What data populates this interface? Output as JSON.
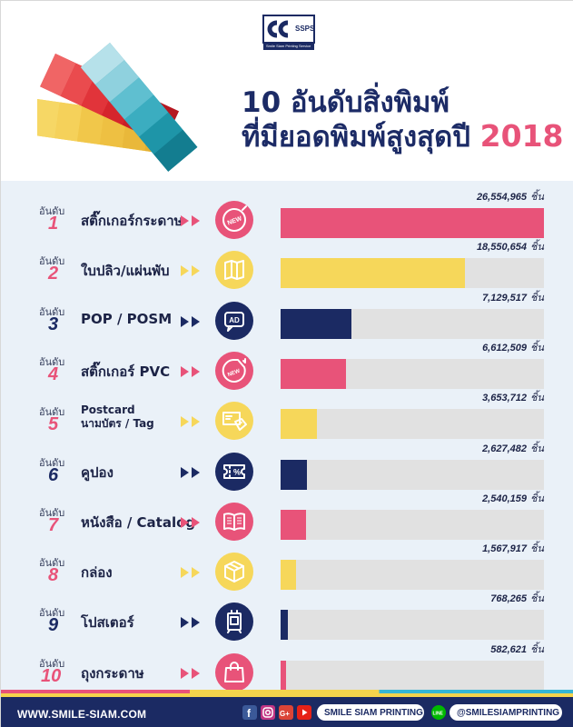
{
  "header": {
    "logo_text": "SSPS",
    "logo_subtitle": "Smile Siam Printing Service",
    "title_line1": "10 อันดับสิ่งพิมพ์",
    "title_line2": "ที่มียอดพิมพ์สูงสุดปี",
    "title_year": "2018"
  },
  "colors": {
    "pink": "#e85379",
    "yellow": "#f6d75a",
    "navy": "#1b2a63",
    "track": "#e1e1e1",
    "panel": "#eaf1f8"
  },
  "rank_label": "อันดับ",
  "unit": "ชิ้น",
  "chart_data": {
    "type": "bar",
    "orientation": "horizontal",
    "title": "10 อันดับสิ่งพิมพ์ที่มียอดพิมพ์สูงสุดปี 2018",
    "categories": [
      "สติ๊กเกอร์กระดาษ",
      "ใบปลิว/แผ่นพับ",
      "POP / POSM",
      "สติ๊กเกอร์ PVC",
      "Postcard นามบัตร / Tag",
      "คูปอง",
      "หนังสือ / Catalog",
      "กล่อง",
      "โปสเตอร์",
      "ถุงกระดาษ"
    ],
    "values": [
      26554965,
      18550654,
      7129517,
      6612509,
      3653712,
      2627482,
      2540159,
      1567917,
      768265,
      582621
    ],
    "xlim": [
      0,
      26554965
    ],
    "grid": false
  },
  "rows": [
    {
      "rank": "1",
      "name": "สติ๊กเกอร์กระดาษ",
      "value_text": "26,554,965",
      "color": "#e85379",
      "icon": "new-badge-icon"
    },
    {
      "rank": "2",
      "name": "ใบปลิว/แผ่นพับ",
      "value_text": "18,550,654",
      "color": "#f6d75a",
      "icon": "folded-map-icon"
    },
    {
      "rank": "3",
      "name": "POP / POSM",
      "value_text": "7,129,517",
      "color": "#1b2a63",
      "icon": "ad-sign-icon"
    },
    {
      "rank": "4",
      "name": "สติ๊กเกอร์ PVC",
      "value_text": "6,612,509",
      "color": "#e85379",
      "icon": "new-sticker-icon"
    },
    {
      "rank": "5",
      "name_line1": "Postcard",
      "name_line2": "นามบัตร / Tag",
      "value_text": "3,653,712",
      "color": "#f6d75a",
      "icon": "postcard-tag-icon"
    },
    {
      "rank": "6",
      "name": "คูปอง",
      "value_text": "2,627,482",
      "color": "#1b2a63",
      "icon": "coupon-icon"
    },
    {
      "rank": "7",
      "name": "หนังสือ / Catalog",
      "value_text": "2,540,159",
      "color": "#e85379",
      "icon": "open-book-icon"
    },
    {
      "rank": "8",
      "name": "กล่อง",
      "value_text": "1,567,917",
      "color": "#f6d75a",
      "icon": "box-icon"
    },
    {
      "rank": "9",
      "name": "โปสเตอร์",
      "value_text": "768,265",
      "color": "#1b2a63",
      "icon": "poster-stand-icon"
    },
    {
      "rank": "10",
      "name": "ถุงกระดาษ",
      "value_text": "582,621",
      "color": "#e85379",
      "icon": "paper-bag-icon"
    }
  ],
  "footer": {
    "website": "WWW.SMILE-SIAM.COM",
    "facebook_search": "SMILE SIAM PRINTING",
    "line_search": "@SMILESIAMPRINTING",
    "social_icons": [
      "facebook-icon",
      "instagram-icon",
      "google-plus-icon",
      "youtube-icon",
      "line-icon"
    ]
  }
}
